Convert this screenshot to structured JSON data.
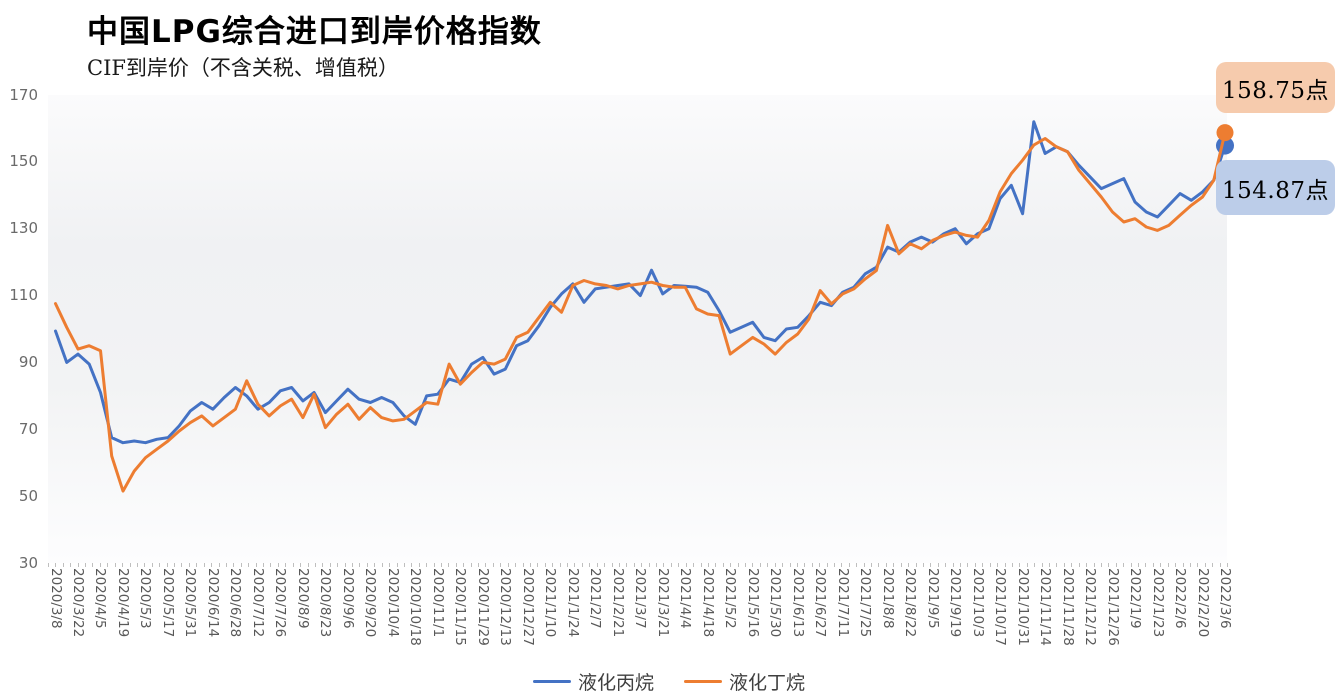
{
  "header": {
    "title": "中国LPG综合进口到岸价格指数",
    "subtitle": "CIF到岸价（不含关税、增值税）"
  },
  "annotations": {
    "butane_end_label": "158.75点",
    "propane_end_label": "154.87点"
  },
  "colors": {
    "propane_line": "#4472C4",
    "butane_line": "#ED7D31",
    "butane_callout_bg": "#F6CBAD",
    "propane_callout_bg": "#BCCDE9",
    "axis_text": "#595959",
    "tick_mark": "#BFBFBF"
  },
  "chart_data": {
    "type": "line",
    "title": "中国LPG综合进口到岸价格指数",
    "subtitle": "CIF到岸价（不含关税、增值税）",
    "frequency": "weekly",
    "x_start": "2020/3/8",
    "x_end": "2022/3/6",
    "points_per_tick_label": 2,
    "x_tick_labels": [
      "2020/3/8",
      "2020/3/22",
      "2020/4/5",
      "2020/4/19",
      "2020/5/3",
      "2020/5/17",
      "2020/5/31",
      "2020/6/14",
      "2020/6/28",
      "2020/7/12",
      "2020/7/26",
      "2020/8/9",
      "2020/8/23",
      "2020/9/6",
      "2020/9/20",
      "2020/10/4",
      "2020/10/18",
      "2020/11/1",
      "2020/11/15",
      "2020/11/29",
      "2020/12/13",
      "2020/12/27",
      "2021/1/10",
      "2021/1/24",
      "2021/2/7",
      "2021/2/21",
      "2021/3/7",
      "2021/3/21",
      "2021/4/4",
      "2021/4/18",
      "2021/5/2",
      "2021/5/16",
      "2021/5/30",
      "2021/6/13",
      "2021/6/27",
      "2021/7/11",
      "2021/7/25",
      "2021/8/8",
      "2021/8/22",
      "2021/9/5",
      "2021/9/19",
      "2021/10/3",
      "2021/10/17",
      "2021/10/31",
      "2021/11/14",
      "2021/11/28",
      "2021/12/12",
      "2021/12/26",
      "2022/1/9",
      "2022/1/23",
      "2022/2/6",
      "2022/2/20",
      "2022/3/6"
    ],
    "ylim": [
      30,
      170
    ],
    "yticks": [
      30,
      50,
      70,
      90,
      110,
      130,
      150,
      170
    ],
    "grid": false,
    "legend_position": "bottom",
    "series": [
      {
        "name": "液化丙烷",
        "color": "#4472C4",
        "end_value_label": "154.87点",
        "values": [
          99.4,
          90.0,
          92.5,
          89.5,
          81.0,
          67.5,
          66.0,
          66.5,
          66.0,
          67.0,
          67.5,
          71.0,
          75.5,
          78.0,
          76.0,
          79.5,
          82.5,
          80.0,
          76.0,
          78.0,
          81.5,
          82.5,
          78.5,
          81.0,
          75.0,
          78.5,
          82.0,
          79.0,
          78.0,
          79.5,
          78.0,
          74.0,
          71.5,
          80.0,
          80.5,
          85.0,
          84.0,
          89.5,
          91.5,
          86.5,
          88.0,
          95.0,
          96.5,
          101.0,
          106.5,
          110.5,
          113.5,
          108.0,
          112.0,
          112.5,
          113.0,
          113.5,
          110.0,
          117.6,
          110.5,
          113.0,
          112.8,
          112.5,
          111.0,
          105.5,
          99.0,
          100.5,
          102.0,
          97.5,
          96.5,
          100.0,
          100.5,
          104.0,
          108.0,
          107.0,
          111.0,
          112.5,
          116.5,
          118.5,
          124.5,
          123.0,
          126.0,
          127.5,
          126.0,
          128.5,
          130.0,
          125.5,
          128.5,
          130.0,
          139.0,
          143.0,
          134.5,
          162.0,
          152.5,
          154.5,
          153.0,
          149.0,
          145.5,
          142.0,
          143.5,
          145.0,
          138.0,
          135.0,
          133.5,
          137.0,
          140.5,
          138.5,
          141.0,
          144.5,
          154.87
        ]
      },
      {
        "name": "液化丁烷",
        "color": "#ED7D31",
        "end_value_label": "158.75点",
        "values": [
          107.6,
          100.5,
          94.0,
          95.0,
          93.5,
          62.0,
          51.5,
          57.5,
          61.5,
          64.0,
          66.5,
          69.5,
          72.0,
          74.0,
          71.0,
          73.5,
          76.0,
          84.5,
          77.5,
          74.0,
          77.0,
          79.0,
          73.5,
          80.5,
          70.5,
          74.5,
          77.5,
          73.0,
          76.5,
          73.5,
          72.5,
          73.0,
          75.5,
          78.0,
          77.5,
          89.5,
          83.5,
          87.0,
          90.0,
          89.5,
          91.0,
          97.5,
          99.0,
          103.5,
          108.0,
          105.0,
          113.0,
          114.5,
          113.5,
          113.0,
          112.0,
          113.0,
          113.5,
          114.0,
          113.0,
          112.5,
          112.5,
          106.0,
          104.5,
          104.0,
          92.5,
          95.0,
          97.5,
          95.5,
          92.5,
          96.0,
          98.5,
          103.0,
          111.5,
          107.5,
          110.5,
          112.0,
          115.0,
          117.5,
          131.0,
          122.5,
          125.5,
          124.0,
          126.5,
          128.0,
          129.0,
          128.0,
          127.5,
          132.5,
          141.0,
          146.5,
          150.5,
          155.0,
          157.0,
          154.5,
          153.0,
          147.5,
          143.5,
          139.5,
          135.0,
          132.0,
          133.0,
          130.5,
          129.5,
          131.0,
          134.0,
          137.0,
          139.5,
          144.5,
          158.75
        ]
      }
    ]
  }
}
